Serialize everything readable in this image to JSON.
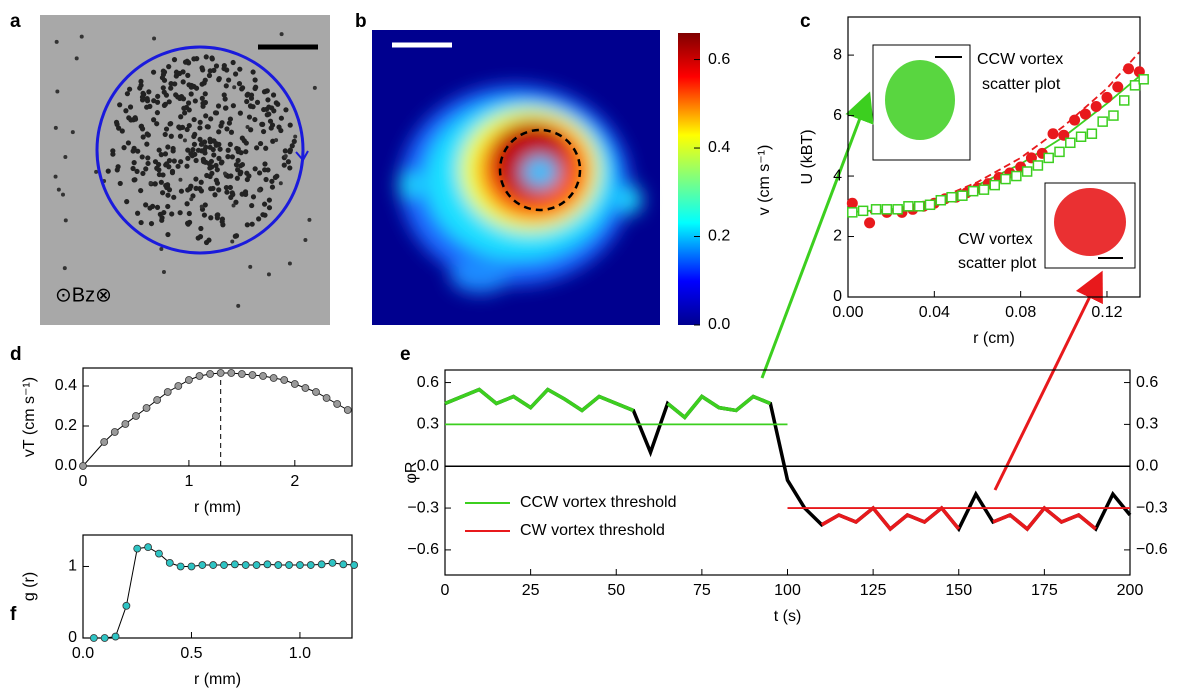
{
  "chart_data": [
    {
      "type": "image",
      "label": "a",
      "annotation": "⊙Bz⊗"
    },
    {
      "type": "heatmap",
      "label": "b",
      "zlabel": "v (cm s⁻¹)",
      "zlim": [
        0,
        0.66
      ],
      "zticks": [
        {
          "value": 0,
          "label": "0.0"
        },
        0.2,
        0.4,
        0.6
      ]
    },
    {
      "type": "scatter",
      "label": "c",
      "xlabel": "r (cm)",
      "ylabel": "U (kBT)",
      "xlim": [
        0,
        0.1353
      ],
      "ylim": [
        0,
        9.26
      ],
      "xticks": [
        {
          "value": 0,
          "label": "0.00"
        },
        0.04,
        0.08,
        0.12
      ],
      "yticks": [
        0,
        2,
        4,
        6,
        8
      ],
      "annotations": [
        "CCW vortex",
        "scatter plot",
        "CW vortex",
        "scatter plot"
      ],
      "series": [
        {
          "color": "#e8191c",
          "style": "dashed",
          "x": [
            0,
            0.02,
            0.04,
            0.06,
            0.08,
            0.1,
            0.12,
            0.135
          ],
          "values": [
            2.75,
            2.85,
            3.2,
            3.8,
            4.6,
            5.65,
            6.9,
            8.1
          ]
        },
        {
          "color": "#3ccf1f",
          "style": "line",
          "x": [
            0,
            0.02,
            0.04,
            0.06,
            0.08,
            0.1,
            0.12,
            0.135
          ],
          "values": [
            2.8,
            2.9,
            3.2,
            3.7,
            4.4,
            5.3,
            6.4,
            7.3
          ]
        },
        {
          "color": "#e8191c",
          "style": "circle",
          "x": [
            0.002,
            0.01,
            0.018,
            0.025,
            0.03,
            0.035,
            0.04,
            0.045,
            0.05,
            0.055,
            0.06,
            0.065,
            0.07,
            0.075,
            0.08,
            0.085,
            0.09,
            0.095,
            0.1,
            0.105,
            0.11,
            0.115,
            0.12,
            0.125,
            0.13,
            0.135
          ],
          "values": [
            3.1,
            2.45,
            2.8,
            2.8,
            2.9,
            3.0,
            3.1,
            3.25,
            3.3,
            3.45,
            3.6,
            3.75,
            3.95,
            4.1,
            4.3,
            4.6,
            4.75,
            5.4,
            5.35,
            5.85,
            6.05,
            6.3,
            6.6,
            6.95,
            7.55,
            7.45
          ]
        },
        {
          "color": "#3ccf1f",
          "style": "square",
          "x": [
            0.002,
            0.007,
            0.013,
            0.018,
            0.023,
            0.028,
            0.033,
            0.038,
            0.043,
            0.048,
            0.053,
            0.058,
            0.063,
            0.068,
            0.073,
            0.078,
            0.083,
            0.088,
            0.093,
            0.098,
            0.103,
            0.108,
            0.113,
            0.118,
            0.123,
            0.128,
            0.133,
            0.137
          ],
          "values": [
            2.8,
            2.85,
            2.9,
            2.9,
            2.9,
            3.0,
            3.0,
            3.05,
            3.2,
            3.3,
            3.35,
            3.5,
            3.55,
            3.7,
            3.9,
            4.0,
            4.15,
            4.35,
            4.6,
            4.8,
            5.1,
            5.3,
            5.4,
            5.8,
            6.0,
            6.5,
            7.0,
            7.2
          ]
        }
      ]
    },
    {
      "type": "line",
      "label": "d",
      "xlabel": "r (mm)",
      "ylabel": "vT (cm s⁻¹)",
      "xlim": [
        0,
        2.54
      ],
      "ylim": [
        0,
        0.49
      ],
      "xticks": [
        0,
        1,
        2
      ],
      "yticks": [
        {
          "value": 0,
          "label": "0.0"
        },
        0.2,
        0.4
      ],
      "vline": 1.3,
      "x": [
        0,
        0.2,
        0.3,
        0.4,
        0.5,
        0.6,
        0.7,
        0.8,
        0.9,
        1.0,
        1.1,
        1.2,
        1.3,
        1.4,
        1.5,
        1.6,
        1.7,
        1.8,
        1.9,
        2.0,
        2.1,
        2.2,
        2.3,
        2.4,
        2.5
      ],
      "series": [
        {
          "color": "#9a9a9a",
          "style": "line-circle",
          "values": [
            0,
            0.12,
            0.17,
            0.21,
            0.25,
            0.29,
            0.33,
            0.37,
            0.4,
            0.43,
            0.45,
            0.46,
            0.465,
            0.465,
            0.46,
            0.455,
            0.45,
            0.44,
            0.43,
            0.41,
            0.39,
            0.37,
            0.34,
            0.31,
            0.28
          ]
        }
      ]
    },
    {
      "type": "line",
      "label": "e",
      "xlabel": "t (s)",
      "ylabel": "φR",
      "xlim": [
        0,
        200
      ],
      "ylim": [
        -0.78,
        0.69
      ],
      "y2lim": [
        -0.78,
        0.69
      ],
      "xticks": [
        0,
        25,
        50,
        75,
        100,
        125,
        150,
        175,
        200
      ],
      "yticks": [
        {
          "value": -0.6,
          "label": "−0.6"
        },
        {
          "value": -0.3,
          "label": "−0.3"
        },
        {
          "value": 0,
          "label": "0.0"
        },
        0.3,
        0.6
      ],
      "y2ticks": [
        {
          "value": -0.6,
          "label": "−0.6"
        },
        {
          "value": -0.3,
          "label": "−0.3"
        },
        {
          "value": 0,
          "label": "0.0"
        },
        0.3,
        0.6
      ],
      "x": [
        0,
        5,
        10,
        15,
        20,
        25,
        30,
        35,
        40,
        45,
        50,
        55,
        60,
        65,
        70,
        75,
        80,
        85,
        90,
        95,
        100,
        105,
        110,
        115,
        120,
        125,
        130,
        135,
        140,
        145,
        150,
        155,
        160,
        165,
        170,
        175,
        180,
        185,
        190,
        195,
        200
      ],
      "series": [
        {
          "color": "#000000",
          "style": "line",
          "values": [
            0.45,
            0.5,
            0.55,
            0.45,
            0.5,
            0.42,
            0.55,
            0.48,
            0.4,
            0.5,
            0.45,
            0.4,
            0.1,
            0.45,
            0.35,
            0.5,
            0.42,
            0.4,
            0.5,
            0.45,
            -0.1,
            -0.3,
            -0.42,
            -0.35,
            -0.4,
            -0.3,
            -0.45,
            -0.35,
            -0.4,
            -0.3,
            -0.45,
            -0.2,
            -0.4,
            -0.35,
            -0.45,
            -0.3,
            -0.4,
            -0.35,
            -0.45,
            -0.2,
            -0.35
          ]
        },
        {
          "color": "#3ccf1f",
          "style": "line",
          "values": [
            0.45,
            0.5,
            0.55,
            0.45,
            0.5,
            0.42,
            0.55,
            0.48,
            0.4,
            0.5,
            0.45,
            0.4,
            null,
            0.45,
            0.35,
            0.5,
            0.42,
            0.4,
            0.5,
            0.45,
            null,
            null,
            null,
            null,
            null,
            null,
            null,
            null,
            null,
            null,
            null,
            null,
            null,
            null,
            null,
            null,
            null,
            null,
            null,
            null,
            null
          ]
        },
        {
          "color": "#e8191c",
          "style": "line",
          "values": [
            null,
            null,
            null,
            null,
            null,
            null,
            null,
            null,
            null,
            null,
            null,
            null,
            null,
            null,
            null,
            null,
            null,
            null,
            null,
            null,
            null,
            null,
            -0.42,
            -0.35,
            -0.4,
            -0.3,
            -0.45,
            -0.35,
            -0.4,
            -0.3,
            -0.45,
            null,
            -0.4,
            -0.35,
            -0.45,
            -0.3,
            -0.4,
            -0.35,
            -0.45,
            null,
            -0.35
          ]
        }
      ],
      "thresholds": [
        {
          "name": "CCW vortex threshold",
          "color": "#3ccf1f",
          "value": 0.3,
          "xrange": [
            0,
            100
          ]
        },
        {
          "name": "CW vortex threshold",
          "color": "#e8191c",
          "value": -0.3,
          "xrange": [
            100,
            200
          ]
        }
      ]
    },
    {
      "type": "line",
      "label": "f",
      "xlabel": "r (mm)",
      "ylabel": "g (r)",
      "xlim": [
        0,
        1.24
      ],
      "ylim": [
        0,
        1.44
      ],
      "xticks": [
        {
          "value": 0,
          "label": "0.0"
        },
        0.5,
        {
          "value": 1,
          "label": "1.0"
        }
      ],
      "yticks": [
        0,
        1
      ],
      "x": [
        0.05,
        0.1,
        0.15,
        0.2,
        0.25,
        0.3,
        0.35,
        0.4,
        0.45,
        0.5,
        0.55,
        0.6,
        0.65,
        0.7,
        0.75,
        0.8,
        0.85,
        0.9,
        0.95,
        1.0,
        1.05,
        1.1,
        1.15,
        1.2,
        1.25
      ],
      "series": [
        {
          "color": "#2ec4c4",
          "style": "line-circle",
          "values": [
            0,
            0,
            0.02,
            0.45,
            1.25,
            1.27,
            1.18,
            1.05,
            1.0,
            1.0,
            1.02,
            1.02,
            1.02,
            1.03,
            1.02,
            1.02,
            1.03,
            1.02,
            1.02,
            1.02,
            1.02,
            1.03,
            1.05,
            1.03,
            1.02
          ]
        }
      ]
    }
  ]
}
